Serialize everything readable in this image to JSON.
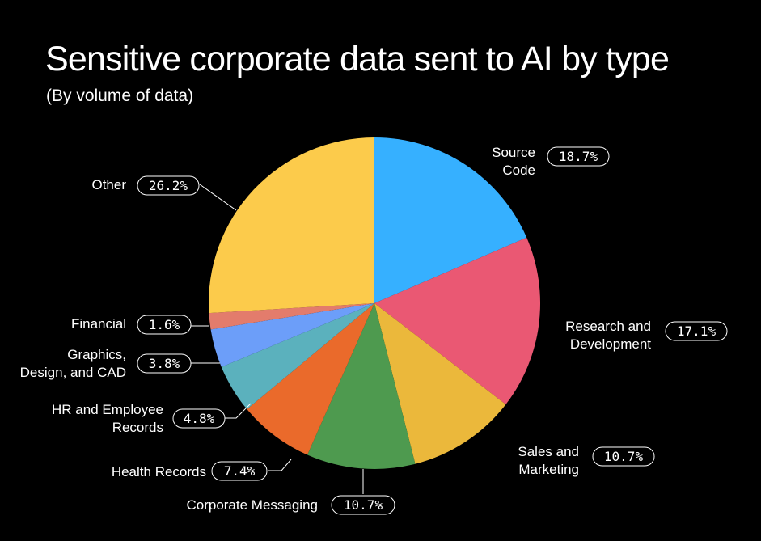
{
  "chart_data": {
    "type": "pie",
    "title": "Sensitive corporate data sent to AI by type",
    "subtitle": "(By volume of data)",
    "slices": [
      {
        "label": "Source Code",
        "value": 18.7,
        "value_label": "18.7%",
        "color": "#36B0FF"
      },
      {
        "label": "Research and Development",
        "value": 17.1,
        "value_label": "17.1%",
        "color": "#EA5873"
      },
      {
        "label": "Sales and Marketing",
        "value": 10.7,
        "value_label": "10.7%",
        "color": "#EBB83B"
      },
      {
        "label": "Corporate Messaging",
        "value": 10.7,
        "value_label": "10.7%",
        "color": "#4E9A4F"
      },
      {
        "label": "Health Records",
        "value": 7.4,
        "value_label": "7.4%",
        "color": "#EA6A2B"
      },
      {
        "label": "HR and Employee Records",
        "value": 4.8,
        "value_label": "4.8%",
        "color": "#5BB1BD"
      },
      {
        "label": "Graphics, Design, and CAD",
        "value": 3.8,
        "value_label": "3.8%",
        "color": "#6C9EF9"
      },
      {
        "label": "Financial",
        "value": 1.6,
        "value_label": "1.6%",
        "color": "#E37C6C"
      },
      {
        "label": "Other",
        "value": 26.2,
        "value_label": "26.2%",
        "color": "#FCCB4B"
      }
    ]
  }
}
